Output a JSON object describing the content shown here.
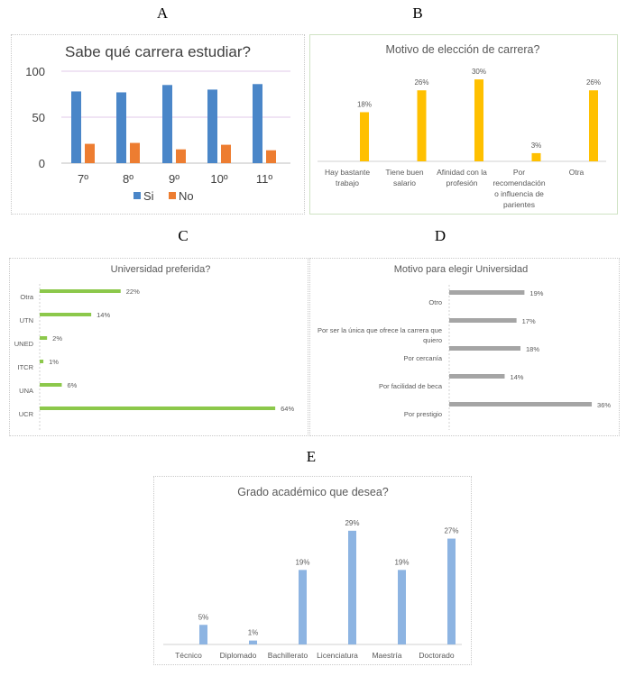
{
  "panel_letters": [
    "A",
    "B",
    "C",
    "D",
    "E"
  ],
  "chart_data": [
    {
      "id": "A",
      "type": "bar",
      "title": "Sabe qué carrera estudiar?",
      "categories": [
        "7º",
        "8º",
        "9º",
        "10º",
        "11º"
      ],
      "series": [
        {
          "name": "Si",
          "color": "#4a86c8",
          "values": [
            78,
            77,
            85,
            80,
            86
          ]
        },
        {
          "name": "No",
          "color": "#ed7d31",
          "values": [
            21,
            22,
            15,
            20,
            14
          ]
        }
      ],
      "yticks": [
        "0",
        "50",
        "100"
      ],
      "ylim": [
        0,
        100
      ],
      "grid": true,
      "legend": "bottom"
    },
    {
      "id": "B",
      "type": "bar",
      "title": "Motivo de elección de carrera?",
      "color": "#ffc000",
      "categories": [
        [
          "Hay bastante",
          "trabajo"
        ],
        [
          "Tiene buen",
          "salario"
        ],
        [
          "Afinidad con la",
          "profesión"
        ],
        [
          "Por",
          "recomendación",
          "o influencia de",
          "parientes"
        ],
        [
          "Otra"
        ]
      ],
      "values": [
        18,
        26,
        30,
        3,
        26
      ],
      "labels": [
        "18%",
        "26%",
        "30%",
        "3%",
        "26%"
      ]
    },
    {
      "id": "C",
      "type": "bar",
      "orientation": "horizontal",
      "title": "Universidad preferida?",
      "color": "#8cc84b",
      "categories": [
        "Otra",
        "UTN",
        "UNED",
        "ITCR",
        "UNA",
        "UCR"
      ],
      "values": [
        22,
        14,
        2,
        1,
        6,
        64
      ],
      "labels": [
        "22%",
        "14%",
        "2%",
        "1%",
        "6%",
        "64%"
      ]
    },
    {
      "id": "D",
      "type": "bar",
      "orientation": "horizontal",
      "title": "Motivo para elegir Universidad",
      "color": "#a5a5a5",
      "categories": [
        [
          "Otro"
        ],
        [
          "Por ser la única que ofrece la carrera que",
          "quiero"
        ],
        [
          "Por cercanía"
        ],
        [
          "Por facilidad de beca"
        ],
        [
          "Por prestigio"
        ]
      ],
      "values": [
        19,
        17,
        18,
        14,
        36
      ],
      "labels": [
        "19%",
        "17%",
        "18%",
        "14%",
        "36%"
      ]
    },
    {
      "id": "E",
      "type": "bar",
      "title": "Grado académico que desea?",
      "color": "#8db4e2",
      "categories": [
        "Técnico",
        "Diplomado",
        "Bachillerato",
        "Licenciatura",
        "Maestría",
        "Doctorado"
      ],
      "values": [
        5,
        1,
        19,
        29,
        19,
        27
      ],
      "labels": [
        "5%",
        "1%",
        "19%",
        "29%",
        "19%",
        "27%"
      ]
    }
  ]
}
